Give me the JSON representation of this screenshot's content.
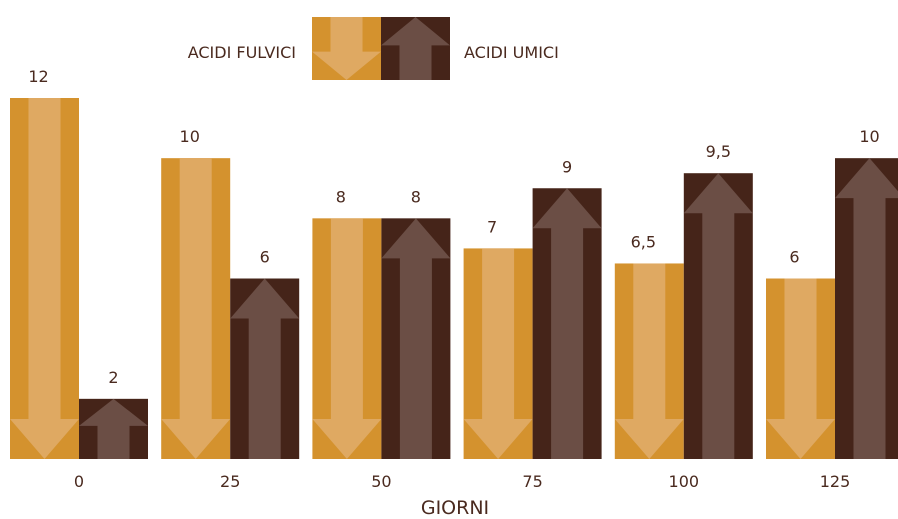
{
  "chart_data": {
    "type": "bar",
    "title": "",
    "xlabel": "GIORNI",
    "ylabel": "",
    "categories": [
      "0",
      "25",
      "50",
      "75",
      "100",
      "125"
    ],
    "series": [
      {
        "name": "ACIDI FULVICI",
        "values": [
          12,
          10,
          8,
          7,
          6.5,
          6
        ],
        "labels": [
          "12",
          "10",
          "8",
          "7",
          "6,5",
          "6"
        ],
        "direction": "down",
        "outer_color": "#D4922E",
        "inner_color": "#DFA962"
      },
      {
        "name": "ACIDI UMICI",
        "values": [
          2,
          6,
          8,
          9,
          9.5,
          10
        ],
        "labels": [
          "2",
          "6",
          "8",
          "9",
          "9,5",
          "10"
        ],
        "direction": "up",
        "outer_color": "#452419",
        "inner_color": "#6B4E45"
      }
    ],
    "ylim": [
      0,
      12
    ],
    "grid": false,
    "legend": "top-center"
  }
}
